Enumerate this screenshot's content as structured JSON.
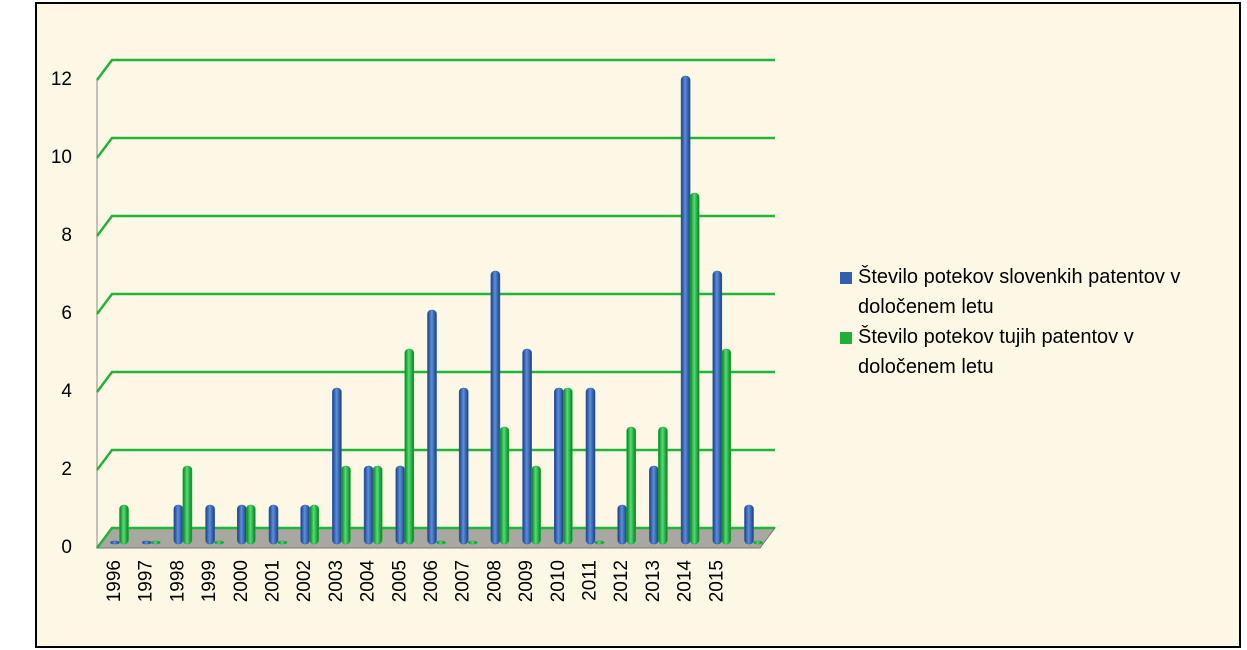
{
  "chart_data": {
    "type": "bar3d",
    "categories": [
      "1996",
      "1997",
      "1998",
      "1999",
      "2000",
      "2001",
      "2002",
      "2003",
      "2004",
      "2005",
      "2006",
      "2007",
      "2008",
      "2009",
      "2010",
      "2011",
      "2012",
      "2013",
      "2014",
      "2015",
      null
    ],
    "series": [
      {
        "name": "Število potekov slovenkih patentov v določenem letu",
        "color": "#2f5fae",
        "values": [
          0,
          0,
          1,
          1,
          1,
          1,
          1,
          4,
          2,
          2,
          6,
          4,
          7,
          5,
          4,
          4,
          1,
          2,
          12,
          7,
          1
        ]
      },
      {
        "name": "Število potekov tujih patentov v določenem letu",
        "color": "#1fae3a",
        "values": [
          1,
          0,
          2,
          0,
          1,
          0,
          1,
          2,
          2,
          5,
          0,
          0,
          3,
          2,
          4,
          0,
          3,
          3,
          9,
          5,
          0
        ]
      }
    ],
    "ylim": [
      0,
      12
    ],
    "yticks": [
      0,
      2,
      4,
      6,
      8,
      10,
      12
    ],
    "grid": true
  }
}
